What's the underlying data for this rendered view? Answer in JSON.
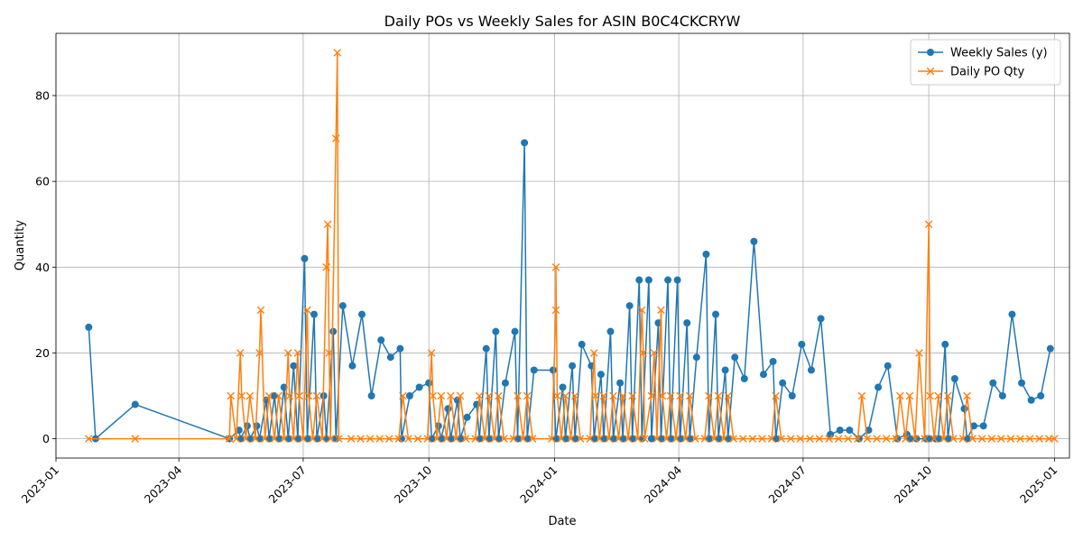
{
  "chart_data": {
    "type": "line",
    "title": "Daily POs vs Weekly Sales for ASIN B0C4CKCRYW",
    "xlabel": "Date",
    "ylabel": "Quantity",
    "xlim": [
      "2023-01-01",
      "2025-01-12"
    ],
    "ylim": [
      -4.5,
      94.5
    ],
    "grid": true,
    "legend_position": "top-right",
    "x_ticks": [
      "2023-01",
      "2023-04",
      "2023-07",
      "2023-10",
      "2024-01",
      "2024-04",
      "2024-07",
      "2024-10",
      "2025-01"
    ],
    "y_ticks": [
      0,
      20,
      40,
      60,
      80
    ],
    "series": [
      {
        "name": "Weekly Sales (y)",
        "color": "#1f77b4",
        "marker": "circle",
        "points": [
          [
            "2023-01-25",
            26
          ],
          [
            "2023-01-30",
            0
          ],
          [
            "2023-02-28",
            8
          ],
          [
            "2023-05-08",
            0
          ],
          [
            "2023-05-15",
            2
          ],
          [
            "2023-05-16",
            0
          ],
          [
            "2023-05-21",
            3
          ],
          [
            "2023-05-23",
            0
          ],
          [
            "2023-05-28",
            3
          ],
          [
            "2023-05-30",
            0
          ],
          [
            "2023-06-04",
            9
          ],
          [
            "2023-06-06",
            0
          ],
          [
            "2023-06-10",
            10
          ],
          [
            "2023-06-13",
            0
          ],
          [
            "2023-06-17",
            12
          ],
          [
            "2023-06-20",
            0
          ],
          [
            "2023-06-24",
            17
          ],
          [
            "2023-06-27",
            0
          ],
          [
            "2023-07-02",
            42
          ],
          [
            "2023-07-04",
            0
          ],
          [
            "2023-07-09",
            29
          ],
          [
            "2023-07-11",
            0
          ],
          [
            "2023-07-16",
            10
          ],
          [
            "2023-07-18",
            0
          ],
          [
            "2023-07-23",
            25
          ],
          [
            "2023-07-25",
            0
          ],
          [
            "2023-07-30",
            31
          ],
          [
            "2023-08-06",
            17
          ],
          [
            "2023-08-13",
            29
          ],
          [
            "2023-08-20",
            10
          ],
          [
            "2023-08-27",
            23
          ],
          [
            "2023-09-03",
            19
          ],
          [
            "2023-09-10",
            21
          ],
          [
            "2023-09-11",
            0
          ],
          [
            "2023-09-17",
            10
          ],
          [
            "2023-09-24",
            12
          ],
          [
            "2023-10-01",
            13
          ],
          [
            "2023-10-03",
            0
          ],
          [
            "2023-10-08",
            3
          ],
          [
            "2023-10-10",
            0
          ],
          [
            "2023-10-15",
            7
          ],
          [
            "2023-10-17",
            0
          ],
          [
            "2023-10-22",
            9
          ],
          [
            "2023-10-24",
            0
          ],
          [
            "2023-10-29",
            5
          ],
          [
            "2023-11-05",
            8
          ],
          [
            "2023-11-07",
            0
          ],
          [
            "2023-11-12",
            21
          ],
          [
            "2023-11-14",
            0
          ],
          [
            "2023-11-19",
            25
          ],
          [
            "2023-11-21",
            0
          ],
          [
            "2023-11-26",
            13
          ],
          [
            "2023-12-03",
            25
          ],
          [
            "2023-12-05",
            0
          ],
          [
            "2023-12-10",
            69
          ],
          [
            "2023-12-12",
            0
          ],
          [
            "2023-12-17",
            16
          ],
          [
            "2023-12-31",
            16
          ],
          [
            "2024-01-02",
            0
          ],
          [
            "2024-01-07",
            12
          ],
          [
            "2024-01-09",
            0
          ],
          [
            "2024-01-14",
            17
          ],
          [
            "2024-01-16",
            0
          ],
          [
            "2024-01-21",
            22
          ],
          [
            "2024-01-28",
            17
          ],
          [
            "2024-01-30",
            0
          ],
          [
            "2024-02-04",
            15
          ],
          [
            "2024-02-06",
            0
          ],
          [
            "2024-02-11",
            25
          ],
          [
            "2024-02-13",
            0
          ],
          [
            "2024-02-18",
            13
          ],
          [
            "2024-02-20",
            0
          ],
          [
            "2024-02-25",
            31
          ],
          [
            "2024-02-27",
            0
          ],
          [
            "2024-03-03",
            37
          ],
          [
            "2024-03-05",
            0
          ],
          [
            "2024-03-10",
            37
          ],
          [
            "2024-03-12",
            0
          ],
          [
            "2024-03-17",
            27
          ],
          [
            "2024-03-19",
            0
          ],
          [
            "2024-03-24",
            37
          ],
          [
            "2024-03-26",
            0
          ],
          [
            "2024-03-31",
            37
          ],
          [
            "2024-04-02",
            0
          ],
          [
            "2024-04-07",
            27
          ],
          [
            "2024-04-09",
            0
          ],
          [
            "2024-04-14",
            19
          ],
          [
            "2024-04-21",
            43
          ],
          [
            "2024-04-23",
            0
          ],
          [
            "2024-04-28",
            29
          ],
          [
            "2024-04-30",
            0
          ],
          [
            "2024-05-05",
            16
          ],
          [
            "2024-05-07",
            0
          ],
          [
            "2024-05-12",
            19
          ],
          [
            "2024-05-19",
            14
          ],
          [
            "2024-05-26",
            46
          ],
          [
            "2024-06-02",
            15
          ],
          [
            "2024-06-09",
            18
          ],
          [
            "2024-06-11",
            0
          ],
          [
            "2024-06-16",
            13
          ],
          [
            "2024-06-23",
            10
          ],
          [
            "2024-06-30",
            22
          ],
          [
            "2024-07-07",
            16
          ],
          [
            "2024-07-14",
            28
          ],
          [
            "2024-07-21",
            1
          ],
          [
            "2024-07-28",
            2
          ],
          [
            "2024-08-04",
            2
          ],
          [
            "2024-08-11",
            0
          ],
          [
            "2024-08-18",
            2
          ],
          [
            "2024-08-25",
            12
          ],
          [
            "2024-09-01",
            17
          ],
          [
            "2024-09-08",
            0
          ],
          [
            "2024-09-15",
            1
          ],
          [
            "2024-09-17",
            0
          ],
          [
            "2024-09-22",
            0
          ],
          [
            "2024-09-29",
            0
          ],
          [
            "2024-10-01",
            0
          ],
          [
            "2024-10-06",
            0
          ],
          [
            "2024-10-08",
            0
          ],
          [
            "2024-10-13",
            22
          ],
          [
            "2024-10-15",
            0
          ],
          [
            "2024-10-20",
            14
          ],
          [
            "2024-10-27",
            7
          ],
          [
            "2024-10-29",
            0
          ],
          [
            "2024-11-03",
            3
          ],
          [
            "2024-11-10",
            3
          ],
          [
            "2024-11-17",
            13
          ],
          [
            "2024-11-24",
            10
          ],
          [
            "2024-12-01",
            29
          ],
          [
            "2024-12-08",
            13
          ],
          [
            "2024-12-15",
            9
          ],
          [
            "2024-12-22",
            10
          ],
          [
            "2024-12-29",
            21
          ]
        ]
      },
      {
        "name": "Daily PO Qty",
        "color": "#ff7f0e",
        "marker": "x",
        "points": [
          [
            "2023-01-25",
            0
          ],
          [
            "2023-02-28",
            0
          ],
          [
            "2023-05-08",
            0
          ],
          [
            "2023-05-09",
            10
          ],
          [
            "2023-05-13",
            0
          ],
          [
            "2023-05-16",
            20
          ],
          [
            "2023-05-17",
            10
          ],
          [
            "2023-05-20",
            0
          ],
          [
            "2023-05-23",
            10
          ],
          [
            "2023-05-27",
            0
          ],
          [
            "2023-05-30",
            20
          ],
          [
            "2023-05-31",
            30
          ],
          [
            "2023-06-03",
            0
          ],
          [
            "2023-06-06",
            10
          ],
          [
            "2023-06-10",
            0
          ],
          [
            "2023-06-13",
            10
          ],
          [
            "2023-06-17",
            0
          ],
          [
            "2023-06-20",
            20
          ],
          [
            "2023-06-21",
            10
          ],
          [
            "2023-06-24",
            0
          ],
          [
            "2023-06-27",
            20
          ],
          [
            "2023-06-28",
            10
          ],
          [
            "2023-07-01",
            0
          ],
          [
            "2023-07-04",
            30
          ],
          [
            "2023-07-05",
            10
          ],
          [
            "2023-07-08",
            0
          ],
          [
            "2023-07-11",
            10
          ],
          [
            "2023-07-15",
            0
          ],
          [
            "2023-07-18",
            40
          ],
          [
            "2023-07-19",
            50
          ],
          [
            "2023-07-20",
            20
          ],
          [
            "2023-07-21",
            0
          ],
          [
            "2023-07-25",
            70
          ],
          [
            "2023-07-26",
            90
          ],
          [
            "2023-07-27",
            0
          ],
          [
            "2023-08-05",
            0
          ],
          [
            "2023-08-12",
            0
          ],
          [
            "2023-08-19",
            0
          ],
          [
            "2023-08-26",
            0
          ],
          [
            "2023-09-02",
            0
          ],
          [
            "2023-09-09",
            0
          ],
          [
            "2023-09-12",
            10
          ],
          [
            "2023-09-16",
            0
          ],
          [
            "2023-09-23",
            0
          ],
          [
            "2023-09-30",
            0
          ],
          [
            "2023-10-03",
            20
          ],
          [
            "2023-10-04",
            10
          ],
          [
            "2023-10-07",
            0
          ],
          [
            "2023-10-10",
            10
          ],
          [
            "2023-10-14",
            0
          ],
          [
            "2023-10-17",
            10
          ],
          [
            "2023-10-21",
            0
          ],
          [
            "2023-10-24",
            10
          ],
          [
            "2023-10-28",
            0
          ],
          [
            "2023-11-04",
            0
          ],
          [
            "2023-11-07",
            10
          ],
          [
            "2023-11-11",
            0
          ],
          [
            "2023-11-14",
            10
          ],
          [
            "2023-11-18",
            0
          ],
          [
            "2023-11-21",
            10
          ],
          [
            "2023-11-25",
            0
          ],
          [
            "2023-12-02",
            0
          ],
          [
            "2023-12-05",
            10
          ],
          [
            "2023-12-09",
            0
          ],
          [
            "2023-12-12",
            10
          ],
          [
            "2023-12-16",
            0
          ],
          [
            "2023-12-30",
            0
          ],
          [
            "2024-01-02",
            30
          ],
          [
            "2024-01-02",
            40
          ],
          [
            "2024-01-03",
            10
          ],
          [
            "2024-01-06",
            0
          ],
          [
            "2024-01-09",
            10
          ],
          [
            "2024-01-13",
            0
          ],
          [
            "2024-01-16",
            10
          ],
          [
            "2024-01-20",
            0
          ],
          [
            "2024-01-27",
            0
          ],
          [
            "2024-01-30",
            20
          ],
          [
            "2024-01-31",
            10
          ],
          [
            "2024-02-03",
            0
          ],
          [
            "2024-02-06",
            10
          ],
          [
            "2024-02-10",
            0
          ],
          [
            "2024-02-13",
            10
          ],
          [
            "2024-02-17",
            0
          ],
          [
            "2024-02-20",
            10
          ],
          [
            "2024-02-24",
            0
          ],
          [
            "2024-02-27",
            10
          ],
          [
            "2024-03-02",
            0
          ],
          [
            "2024-03-05",
            30
          ],
          [
            "2024-03-06",
            20
          ],
          [
            "2024-03-07",
            0
          ],
          [
            "2024-03-12",
            10
          ],
          [
            "2024-03-14",
            20
          ],
          [
            "2024-03-16",
            0
          ],
          [
            "2024-03-19",
            30
          ],
          [
            "2024-03-20",
            10
          ],
          [
            "2024-03-23",
            0
          ],
          [
            "2024-03-26",
            10
          ],
          [
            "2024-03-30",
            0
          ],
          [
            "2024-04-02",
            10
          ],
          [
            "2024-04-06",
            0
          ],
          [
            "2024-04-09",
            10
          ],
          [
            "2024-04-13",
            0
          ],
          [
            "2024-04-20",
            0
          ],
          [
            "2024-04-23",
            10
          ],
          [
            "2024-04-27",
            0
          ],
          [
            "2024-04-30",
            10
          ],
          [
            "2024-05-04",
            0
          ],
          [
            "2024-05-07",
            10
          ],
          [
            "2024-05-11",
            0
          ],
          [
            "2024-05-18",
            0
          ],
          [
            "2024-05-25",
            0
          ],
          [
            "2024-06-01",
            0
          ],
          [
            "2024-06-08",
            0
          ],
          [
            "2024-06-11",
            10
          ],
          [
            "2024-06-15",
            0
          ],
          [
            "2024-06-22",
            0
          ],
          [
            "2024-06-29",
            0
          ],
          [
            "2024-07-06",
            0
          ],
          [
            "2024-07-13",
            0
          ],
          [
            "2024-07-20",
            0
          ],
          [
            "2024-07-27",
            0
          ],
          [
            "2024-08-03",
            0
          ],
          [
            "2024-08-10",
            0
          ],
          [
            "2024-08-13",
            10
          ],
          [
            "2024-08-17",
            0
          ],
          [
            "2024-08-24",
            0
          ],
          [
            "2024-08-31",
            0
          ],
          [
            "2024-09-07",
            0
          ],
          [
            "2024-09-10",
            10
          ],
          [
            "2024-09-14",
            0
          ],
          [
            "2024-09-17",
            10
          ],
          [
            "2024-09-21",
            0
          ],
          [
            "2024-09-24",
            20
          ],
          [
            "2024-09-28",
            0
          ],
          [
            "2024-10-01",
            50
          ],
          [
            "2024-10-02",
            10
          ],
          [
            "2024-10-05",
            0
          ],
          [
            "2024-10-08",
            10
          ],
          [
            "2024-10-12",
            0
          ],
          [
            "2024-10-15",
            10
          ],
          [
            "2024-10-19",
            0
          ],
          [
            "2024-10-26",
            0
          ],
          [
            "2024-10-29",
            10
          ],
          [
            "2024-11-02",
            0
          ],
          [
            "2024-11-09",
            0
          ],
          [
            "2024-11-16",
            0
          ],
          [
            "2024-11-23",
            0
          ],
          [
            "2024-11-30",
            0
          ],
          [
            "2024-12-07",
            0
          ],
          [
            "2024-12-14",
            0
          ],
          [
            "2024-12-21",
            0
          ],
          [
            "2024-12-28",
            0
          ],
          [
            "2025-01-01",
            0
          ]
        ]
      }
    ]
  }
}
